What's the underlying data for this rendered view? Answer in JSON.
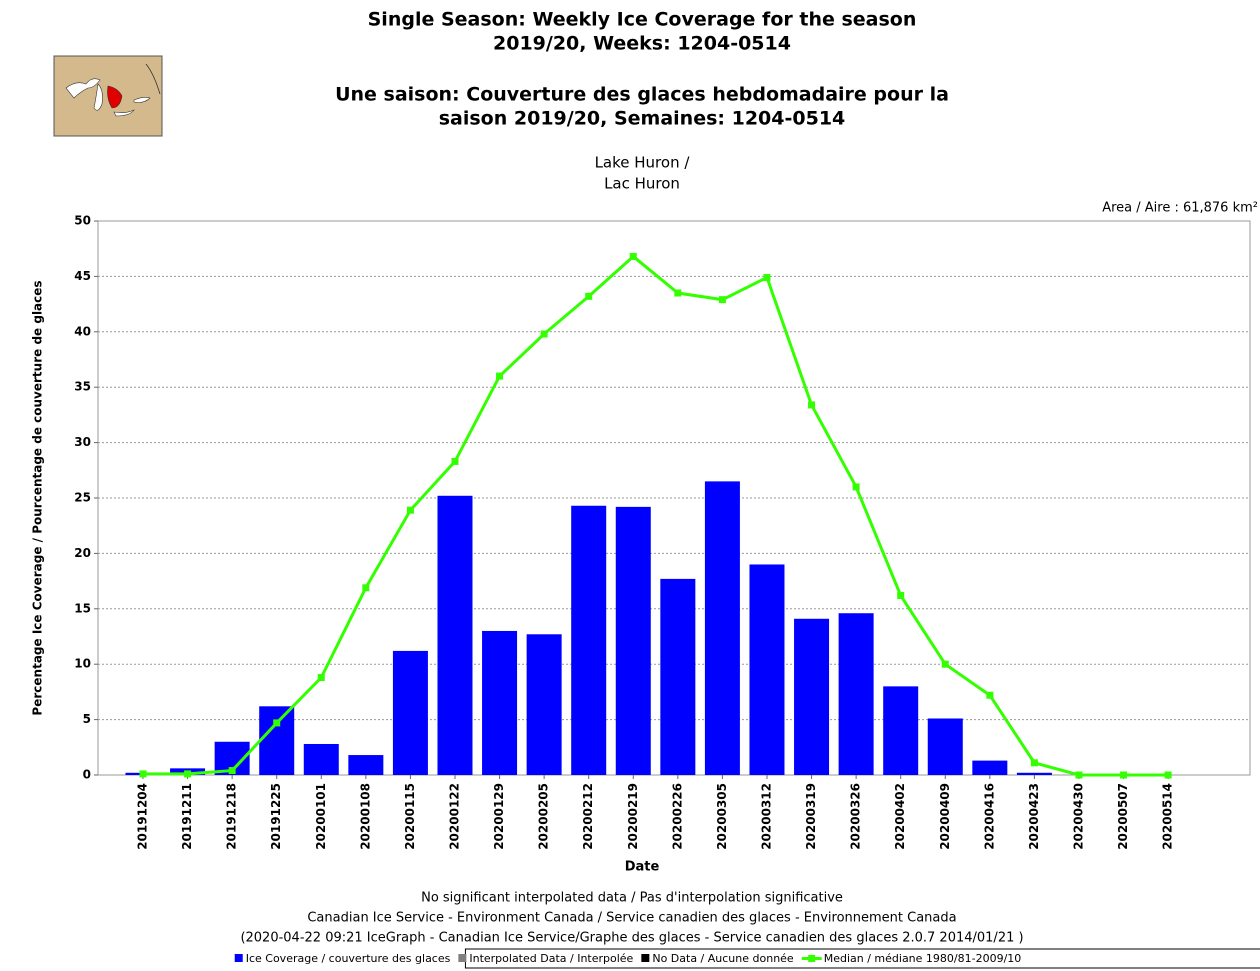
{
  "chart_data": {
    "type": "bar",
    "title": [
      "Single Season: Weekly Ice Coverage for the season",
      "2019/20, Weeks: 1204-0514",
      "Une saison: Couverture des glaces hebdomadaire pour la",
      "saison 2019/20, Semaines: 1204-0514"
    ],
    "subtitle": [
      "Lake Huron /",
      "Lac Huron"
    ],
    "annotation": "Area / Aire : 61,876 km²",
    "x_label": "Date",
    "y_label": "Percentage Ice Coverage / Pourcentage de couverture de glaces",
    "footer": [
      "No significant interpolated data / Pas d'interpolation significative",
      "Canadian Ice Service - Environment Canada / Service canadien des glaces - Environnement Canada",
      "(2020-04-22 09:21 IceGraph - Canadian Ice Service/Graphe des glaces - Service canadien des glaces 2.0.7 2014/01/21 )"
    ],
    "categories": [
      "20191204",
      "20191211",
      "20191218",
      "20191225",
      "20200101",
      "20200108",
      "20200115",
      "20200122",
      "20200129",
      "20200205",
      "20200212",
      "20200219",
      "20200226",
      "20200305",
      "20200312",
      "20200319",
      "20200326",
      "20200402",
      "20200409",
      "20200416",
      "20200423",
      "20200430",
      "20200507",
      "20200514"
    ],
    "series": [
      {
        "name": "Ice Coverage / couverture des glaces",
        "color": "#0000ff",
        "type": "bar",
        "values": [
          0.2,
          0.6,
          3.0,
          6.2,
          2.8,
          1.8,
          11.2,
          25.2,
          13.0,
          12.7,
          24.3,
          24.2,
          17.7,
          26.5,
          19.0,
          14.1,
          14.6,
          8.0,
          5.1,
          1.3,
          0.2,
          0,
          0,
          0
        ]
      },
      {
        "name": "Interpolated Data / Interpolée",
        "color": "#808080",
        "type": "bar",
        "values": [
          null,
          null,
          null,
          null,
          null,
          null,
          null,
          null,
          null,
          null,
          null,
          null,
          null,
          null,
          null,
          null,
          null,
          null,
          null,
          null,
          null,
          null,
          null,
          null
        ]
      },
      {
        "name": "No Data / Aucune donnée",
        "color": "#000000",
        "type": "bar",
        "values": [
          null,
          null,
          null,
          null,
          null,
          null,
          null,
          null,
          null,
          null,
          null,
          null,
          null,
          null,
          null,
          null,
          null,
          null,
          null,
          null,
          null,
          null,
          null,
          null
        ]
      },
      {
        "name": "Median / médiane 1980/81-2009/10",
        "color": "#33ff00",
        "type": "line",
        "values": [
          0.1,
          0.1,
          0.4,
          4.7,
          8.8,
          16.9,
          23.9,
          28.3,
          36.0,
          39.8,
          43.2,
          46.8,
          43.5,
          42.9,
          44.9,
          33.4,
          26.0,
          16.2,
          10.0,
          7.2,
          1.1,
          0,
          0,
          0
        ]
      }
    ],
    "ylim": [
      0,
      50
    ],
    "yticks": [
      0,
      5,
      10,
      15,
      20,
      25,
      30,
      35,
      40,
      45,
      50
    ],
    "grid": true
  }
}
